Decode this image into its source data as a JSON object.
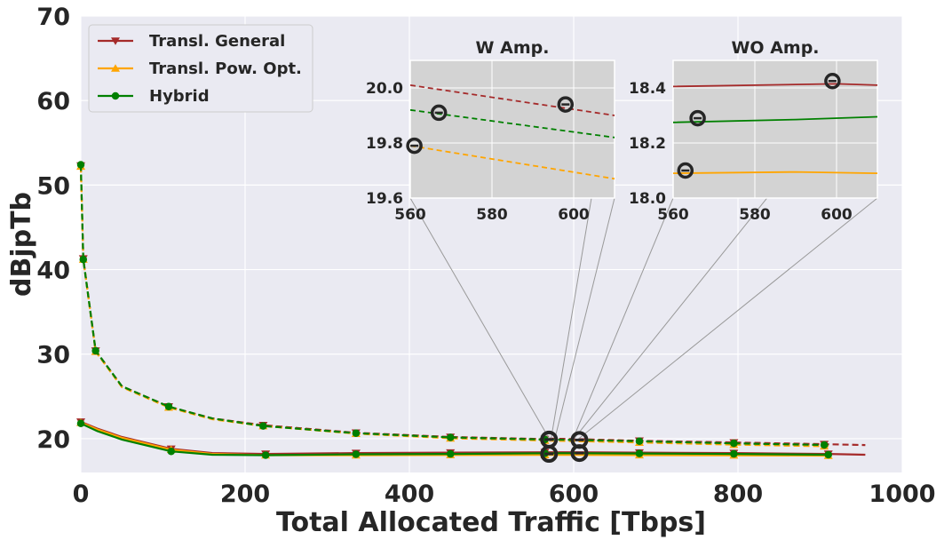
{
  "chart_data": {
    "type": "line",
    "xlabel": "Total Allocated Traffic [Tbps]",
    "ylabel": "dBjpTb",
    "xlim": [
      0,
      1000
    ],
    "ylim": [
      16,
      70
    ],
    "xticks": [
      0,
      200,
      400,
      600,
      800,
      1000
    ],
    "yticks": [
      20,
      30,
      40,
      50,
      60,
      70
    ],
    "grid": true,
    "legend_position": "top-left",
    "series": [
      {
        "name": "Transl. General",
        "color": "#a52a2a",
        "marker": "triangle-down",
        "solid": [
          [
            0,
            22.0
          ],
          [
            20,
            21.2
          ],
          [
            50,
            20.2
          ],
          [
            110,
            18.8
          ],
          [
            160,
            18.3
          ],
          [
            225,
            18.2
          ],
          [
            335,
            18.3
          ],
          [
            450,
            18.35
          ],
          [
            570,
            18.4
          ],
          [
            600,
            18.4
          ],
          [
            680,
            18.35
          ],
          [
            795,
            18.3
          ],
          [
            910,
            18.2
          ],
          [
            955,
            18.1
          ]
        ],
        "dashed": [
          [
            0,
            52.3
          ],
          [
            3,
            41.3
          ],
          [
            18,
            30.4
          ],
          [
            50,
            26.2
          ],
          [
            107,
            23.8
          ],
          [
            160,
            22.4
          ],
          [
            222,
            21.6
          ],
          [
            335,
            20.7
          ],
          [
            450,
            20.2
          ],
          [
            565,
            19.95
          ],
          [
            570,
            20.0
          ],
          [
            600,
            19.96
          ],
          [
            680,
            19.75
          ],
          [
            795,
            19.55
          ],
          [
            905,
            19.35
          ],
          [
            955,
            19.25
          ]
        ]
      },
      {
        "name": "Transl. Pow. Opt.",
        "color": "#ffa500",
        "marker": "triangle-up",
        "solid": [
          [
            0,
            21.9
          ],
          [
            20,
            21.1
          ],
          [
            50,
            20.1
          ],
          [
            110,
            18.7
          ],
          [
            160,
            18.2
          ],
          [
            225,
            18.05
          ],
          [
            335,
            18.05
          ],
          [
            450,
            18.07
          ],
          [
            570,
            18.08
          ],
          [
            600,
            18.08
          ],
          [
            680,
            18.06
          ],
          [
            795,
            18.04
          ],
          [
            910,
            18.0
          ]
        ],
        "dashed": [
          [
            0,
            52.2
          ],
          [
            3,
            41.2
          ],
          [
            18,
            30.3
          ],
          [
            50,
            26.1
          ],
          [
            107,
            23.7
          ],
          [
            160,
            22.3
          ],
          [
            222,
            21.5
          ],
          [
            335,
            20.6
          ],
          [
            450,
            20.05
          ],
          [
            565,
            19.78
          ],
          [
            600,
            19.72
          ],
          [
            680,
            19.55
          ],
          [
            795,
            19.3
          ],
          [
            910,
            19.1
          ]
        ]
      },
      {
        "name": "Hybrid",
        "color": "#008000",
        "marker": "circle",
        "solid": [
          [
            0,
            21.8
          ],
          [
            20,
            20.9
          ],
          [
            50,
            19.9
          ],
          [
            110,
            18.5
          ],
          [
            160,
            18.1
          ],
          [
            225,
            18.05
          ],
          [
            335,
            18.15
          ],
          [
            450,
            18.2
          ],
          [
            570,
            18.28
          ],
          [
            600,
            18.28
          ],
          [
            680,
            18.25
          ],
          [
            795,
            18.2
          ],
          [
            910,
            18.1
          ]
        ],
        "dashed": [
          [
            0,
            52.4
          ],
          [
            3,
            41.2
          ],
          [
            18,
            30.4
          ],
          [
            50,
            26.2
          ],
          [
            107,
            23.8
          ],
          [
            160,
            22.4
          ],
          [
            222,
            21.5
          ],
          [
            335,
            20.65
          ],
          [
            450,
            20.15
          ],
          [
            565,
            19.9
          ],
          [
            600,
            19.86
          ],
          [
            680,
            19.7
          ],
          [
            795,
            19.45
          ],
          [
            910,
            19.25
          ]
        ]
      }
    ],
    "markers_x": {
      "solid": [
        0,
        110,
        225,
        335,
        450,
        565,
        680,
        795,
        910
      ],
      "dashed": [
        0,
        3,
        18,
        107,
        222,
        335,
        450,
        565,
        680,
        795,
        905
      ]
    },
    "highlight_points": [
      {
        "x": 570,
        "y": 18.2
      },
      {
        "x": 570,
        "y": 19.9
      },
      {
        "x": 607,
        "y": 18.3
      },
      {
        "x": 607,
        "y": 19.85
      }
    ],
    "insets": [
      {
        "title": "W Amp.",
        "xlim": [
          560,
          610
        ],
        "ylim": [
          19.6,
          20.1
        ],
        "xticks": [
          560,
          580,
          600
        ],
        "yticks": [
          19.6,
          19.8,
          20.0
        ],
        "ytick_labels": [
          "19.6",
          "19.8",
          "20.0"
        ],
        "lines": [
          {
            "series": "Transl. General",
            "style": "dashed",
            "points": [
              [
                560,
                20.01
              ],
              [
                610,
                19.9
              ]
            ]
          },
          {
            "series": "Hybrid",
            "style": "dashed",
            "points": [
              [
                560,
                19.92
              ],
              [
                610,
                19.82
              ]
            ]
          },
          {
            "series": "Transl. Pow. Opt.",
            "style": "dashed",
            "points": [
              [
                560,
                19.79
              ],
              [
                610,
                19.67
              ]
            ]
          }
        ],
        "circles": [
          [
            561,
            19.79
          ],
          [
            567,
            19.91
          ],
          [
            598,
            19.94
          ]
        ]
      },
      {
        "title": "WO Amp.",
        "xlim": [
          560,
          610
        ],
        "ylim": [
          18.0,
          18.5
        ],
        "xticks": [
          560,
          580,
          600
        ],
        "yticks": [
          18.0,
          18.2,
          18.4
        ],
        "ytick_labels": [
          "18.0",
          "18.2",
          "18.4"
        ],
        "lines": [
          {
            "series": "Transl. General",
            "style": "solid",
            "points": [
              [
                560,
                18.405
              ],
              [
                600,
                18.415
              ],
              [
                610,
                18.41
              ]
            ]
          },
          {
            "series": "Hybrid",
            "style": "solid",
            "points": [
              [
                560,
                18.275
              ],
              [
                590,
                18.285
              ],
              [
                610,
                18.295
              ]
            ]
          },
          {
            "series": "Transl. Pow. Opt.",
            "style": "solid",
            "points": [
              [
                560,
                18.09
              ],
              [
                590,
                18.095
              ],
              [
                610,
                18.09
              ]
            ]
          }
        ],
        "circles": [
          [
            563,
            18.1
          ],
          [
            566,
            18.29
          ],
          [
            599,
            18.425
          ]
        ]
      }
    ]
  }
}
